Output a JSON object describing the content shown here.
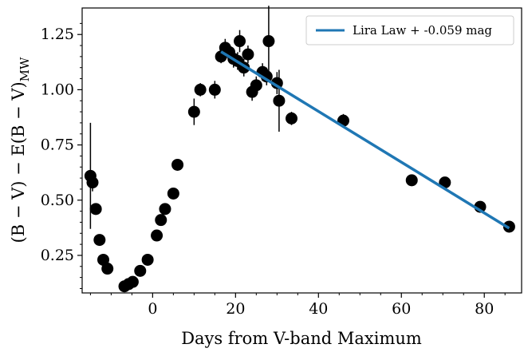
{
  "chart_data": {
    "type": "scatter",
    "xlabel": "Days from V-band Maximum",
    "ylabel": "(B − V) − E(B − V)",
    "ylabel_subscript": "MW",
    "xlim": [
      -17,
      89
    ],
    "ylim": [
      0.08,
      1.37
    ],
    "x_ticks": [
      0,
      20,
      40,
      60,
      80
    ],
    "y_ticks": [
      0.25,
      0.5,
      0.75,
      1.0,
      1.25
    ],
    "y_tick_labels": [
      "0.25",
      "0.50",
      "0.75",
      "1.00",
      "1.25"
    ],
    "grid": false,
    "legend_position": "top-right",
    "series": [
      {
        "kind": "points",
        "color": "#000000",
        "points": [
          {
            "x": -15.0,
            "y": 0.61,
            "err": 0.24
          },
          {
            "x": -14.5,
            "y": 0.58,
            "err": 0.04
          },
          {
            "x": -13.7,
            "y": 0.46,
            "err": 0.02
          },
          {
            "x": -12.8,
            "y": 0.32,
            "err": 0.02
          },
          {
            "x": -11.9,
            "y": 0.23,
            "err": 0.02
          },
          {
            "x": -10.9,
            "y": 0.19,
            "err": 0.02
          },
          {
            "x": -6.8,
            "y": 0.11,
            "err": 0.02
          },
          {
            "x": -5.8,
            "y": 0.12,
            "err": 0.02
          },
          {
            "x": -4.8,
            "y": 0.13,
            "err": 0.02
          },
          {
            "x": -3.0,
            "y": 0.18,
            "err": 0.02
          },
          {
            "x": -1.2,
            "y": 0.23,
            "err": 0.02
          },
          {
            "x": 1.0,
            "y": 0.34,
            "err": 0.02
          },
          {
            "x": 2.0,
            "y": 0.41,
            "err": 0.02
          },
          {
            "x": 3.0,
            "y": 0.46,
            "err": 0.02
          },
          {
            "x": 5.0,
            "y": 0.53,
            "err": 0.02
          },
          {
            "x": 6.0,
            "y": 0.66,
            "err": 0.02
          },
          {
            "x": 10.0,
            "y": 0.9,
            "err": 0.06
          },
          {
            "x": 11.5,
            "y": 1.0,
            "err": 0.03
          },
          {
            "x": 15.0,
            "y": 1.0,
            "err": 0.04
          },
          {
            "x": 16.5,
            "y": 1.15,
            "err": 0.03
          },
          {
            "x": 17.5,
            "y": 1.19,
            "err": 0.04
          },
          {
            "x": 18.5,
            "y": 1.17,
            "err": 0.03
          },
          {
            "x": 19.5,
            "y": 1.14,
            "err": 0.04
          },
          {
            "x": 20.5,
            "y": 1.13,
            "err": 0.04
          },
          {
            "x": 21.0,
            "y": 1.22,
            "err": 0.05
          },
          {
            "x": 22.0,
            "y": 1.1,
            "err": 0.04
          },
          {
            "x": 23.0,
            "y": 1.16,
            "err": 0.04
          },
          {
            "x": 24.0,
            "y": 0.99,
            "err": 0.04
          },
          {
            "x": 25.0,
            "y": 1.02,
            "err": 0.04
          },
          {
            "x": 26.5,
            "y": 1.08,
            "err": 0.04
          },
          {
            "x": 27.5,
            "y": 1.06,
            "err": 0.04
          },
          {
            "x": 28.0,
            "y": 1.22,
            "err": 0.16
          },
          {
            "x": 30.0,
            "y": 1.03,
            "err": 0.05
          },
          {
            "x": 30.5,
            "y": 0.95,
            "err": 0.14
          },
          {
            "x": 33.5,
            "y": 0.87,
            "err": 0.03
          },
          {
            "x": 46.0,
            "y": 0.86,
            "err": 0.03
          },
          {
            "x": 62.5,
            "y": 0.59,
            "err": 0.02
          },
          {
            "x": 70.5,
            "y": 0.58,
            "err": 0.02
          },
          {
            "x": 79.0,
            "y": 0.47,
            "err": 0.02
          },
          {
            "x": 86.0,
            "y": 0.38,
            "err": 0.02
          }
        ]
      },
      {
        "kind": "line",
        "name": "Lira Law + -0.059 mag",
        "color": "#1f77b4",
        "x": [
          16.5,
          86.0
        ],
        "y": [
          1.172,
          0.373
        ]
      }
    ]
  }
}
